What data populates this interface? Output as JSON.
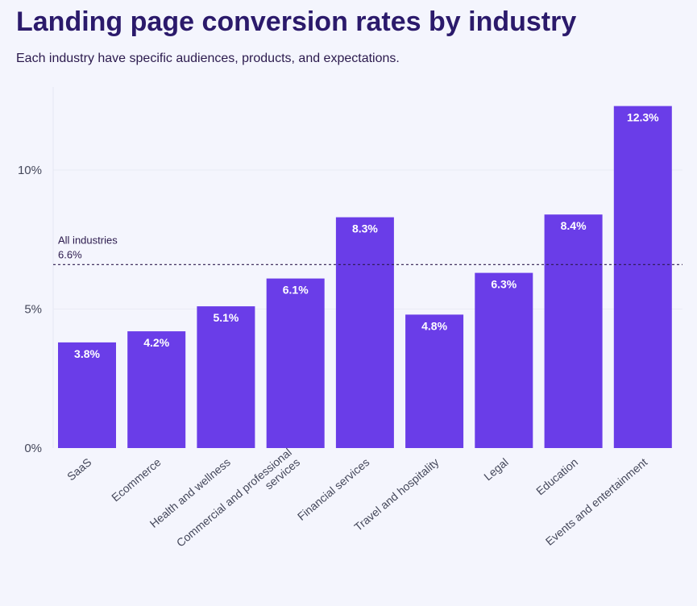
{
  "title": "Landing page conversion rates by industry",
  "subtitle": "Each industry have specific audiences, products, and expectations.",
  "colors": {
    "bar": "#6a3de8",
    "background": "#f4f5fd",
    "reference_line": "#2b1a4d"
  },
  "chart_data": {
    "type": "bar",
    "title": "Landing page conversion rates by industry",
    "xlabel": "",
    "ylabel": "",
    "ylim": [
      0,
      13
    ],
    "yticks": [
      {
        "value": 0,
        "label": "0%"
      },
      {
        "value": 5,
        "label": "5%"
      },
      {
        "value": 10,
        "label": "10%"
      }
    ],
    "categories": [
      [
        "SaaS"
      ],
      [
        "Ecommerce"
      ],
      [
        "Health and wellness"
      ],
      [
        "Commercial and professional",
        "services"
      ],
      [
        "Financial services"
      ],
      [
        "Travel and hospitality"
      ],
      [
        "Legal"
      ],
      [
        "Education"
      ],
      [
        "Events and entertainment"
      ]
    ],
    "values": [
      3.8,
      4.2,
      5.1,
      6.1,
      8.3,
      4.8,
      6.3,
      8.4,
      12.3
    ],
    "value_labels": [
      "3.8%",
      "4.2%",
      "5.1%",
      "6.1%",
      "8.3%",
      "4.8%",
      "6.3%",
      "8.4%",
      "12.3%"
    ],
    "reference_line": {
      "label": "All industries",
      "value": 6.6,
      "value_label": "6.6%"
    }
  }
}
